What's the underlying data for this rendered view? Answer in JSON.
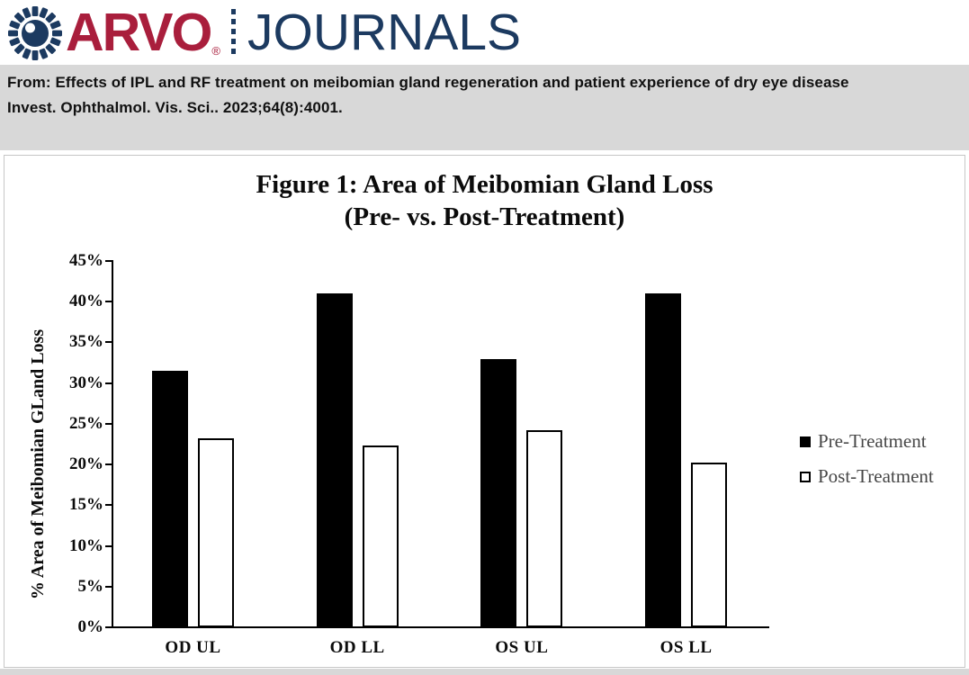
{
  "header": {
    "brand": "ARVO",
    "brand_reg": "®",
    "journals": "JOURNALS",
    "logo_icon": "arvo-eye-icon",
    "colors": {
      "brand_red": "#A91E3C",
      "navy": "#1C3A60"
    }
  },
  "citation": {
    "line1": "From: Effects of IPL and RF treatment on meibomian gland regeneration and patient experience of dry eye disease",
    "line2": "Invest. Ophthalmol. Vis. Sci.. 2023;64(8):4001."
  },
  "chart_data": {
    "type": "bar",
    "title": "Figure 1: Area of Meibomian Gland Loss",
    "subtitle": "(Pre- vs. Post-Treatment)",
    "ylabel": "% Area of Meibomian GLand Loss",
    "xlabel": "",
    "categories": [
      "OD UL",
      "OD LL",
      "OS UL",
      "OS LL"
    ],
    "series": [
      {
        "name": "Pre-Treatment",
        "fill": "#000000",
        "border": "#000000",
        "values": [
          31.5,
          41.0,
          33.0,
          41.0
        ]
      },
      {
        "name": "Post-Treatment",
        "fill": "#ffffff",
        "border": "#000000",
        "values": [
          23.2,
          22.3,
          24.2,
          20.2
        ]
      }
    ],
    "ylim": [
      0,
      45
    ],
    "ytick_step": 5,
    "ytick_labels": [
      "0%",
      "5%",
      "10%",
      "15%",
      "20%",
      "25%",
      "30%",
      "35%",
      "40%",
      "45%"
    ],
    "grid": false,
    "legend_position": "right",
    "legend_text_color": "#474747"
  }
}
